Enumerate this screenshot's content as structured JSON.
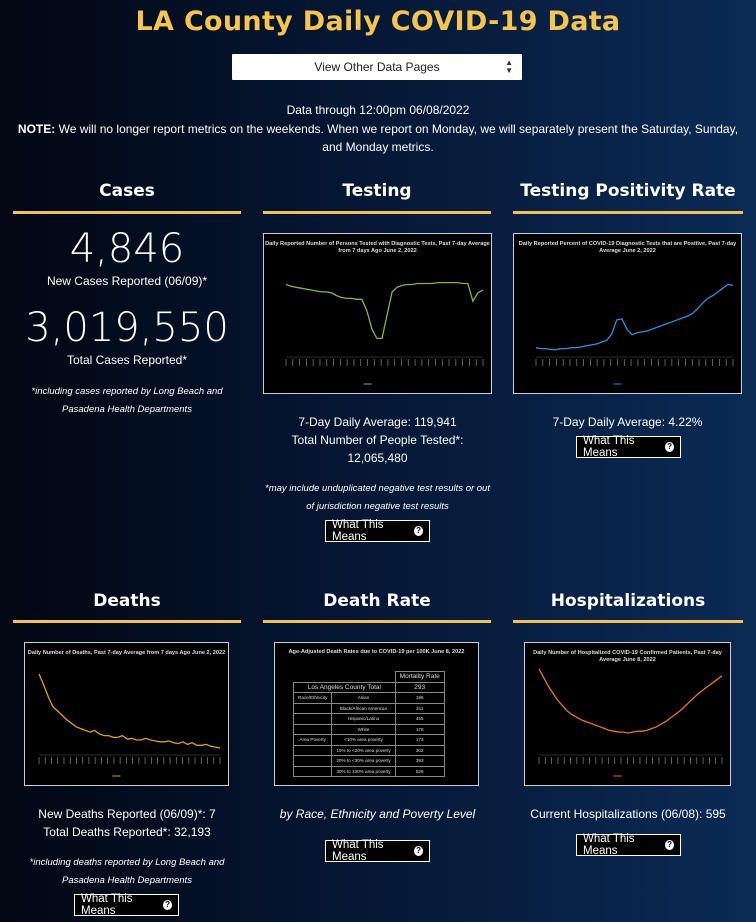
{
  "page": {
    "title": "LA County Daily COVID-19 Data"
  },
  "nav": {
    "dropdown_label": "View Other Data Pages"
  },
  "info": {
    "data_through": "Data through 12:00pm 06/08/2022",
    "note_label": "NOTE:",
    "note_text": " We will no longer report metrics on the weekends. When we report on Monday, we will separately present the Saturday, Sunday, and Monday metrics."
  },
  "cases": {
    "heading": "Cases",
    "new_count": "4,846",
    "new_label": "New Cases Reported (06/09)*",
    "total_count": "3,019,550",
    "total_label": "Total Cases Reported*",
    "footnote": "*including cases reported by Long Beach and Pasadena Health Departments"
  },
  "testing": {
    "heading": "Testing",
    "chart_title": "Daily Reported Number of Persons Tested with Diagnostic Tests, Past 7-day Average from 7 days Ago June 2, 2022",
    "avg_line": "7-Day Daily Average: 119,941",
    "total_line1": "Total Number of People Tested*:",
    "total_line2": "12,065,480",
    "footnote": "*may include unduplicated negative test results or out of jurisdiction negative test results",
    "button": "What This Means"
  },
  "positivity": {
    "heading": "Testing Positivity Rate",
    "chart_title": "Daily Reported Percent of COVID-19 Diagnostic Tests that are Positive, Past 7-day Average June 2, 2022",
    "avg_line": "7-Day Daily Average: 4.22%",
    "button": "What This Means"
  },
  "deaths": {
    "heading": "Deaths",
    "chart_title": "Daily Number of Deaths, Past 7-day Average from 7 days Ago June 2, 2022",
    "new_line": "New Deaths Reported (06/09)*: 7",
    "total_line": "Total Deaths Reported*: 32,193",
    "footnote": "*including deaths reported by Long Beach and Pasadena Health Departments",
    "button": "What This Means"
  },
  "death_rate": {
    "heading": "Death Rate",
    "chart_title": "Age-Adjusted Death Rates due to COVID-19 per 100K June 8, 2022",
    "table_header": "Mortality Rate",
    "county_label": "Los Angeles County Total",
    "county_value": "293",
    "group_race": "Race/Ethnicity",
    "group_poverty": "Area Poverty",
    "rows": [
      {
        "label": "Asian",
        "value": "196"
      },
      {
        "label": "Black/African American",
        "value": "311"
      },
      {
        "label": "Hispanic/Latino",
        "value": "455"
      },
      {
        "label": "White",
        "value": "178"
      },
      {
        "label": "<10% area poverty",
        "value": "173"
      },
      {
        "label": "10% to <20% area poverty",
        "value": "302"
      },
      {
        "label": "20% to <30% area poverty",
        "value": "393"
      },
      {
        "label": "30% to 100% area poverty",
        "value": "525"
      }
    ],
    "caption": "by Race, Ethnicity and Poverty Level",
    "button": "What This Means"
  },
  "hospitalizations": {
    "heading": "Hospitalizations",
    "chart_title": "Daily Number of Hospitalized COVID-19 Confirmed Patients, Past 7-day Average June 8, 2022",
    "current_line": "Current Hospitalizations (06/08): 595",
    "button": "What This Means"
  },
  "colors": {
    "accent": "#f5c451",
    "rule": "#f0c15a",
    "testing_line": "#8db23a",
    "positivity_line": "#2e8fd8",
    "deaths_line": "#d9a21b",
    "hosp_line": "#e07b1c"
  },
  "chart_data": [
    {
      "type": "line",
      "title": "Daily Reported Number of Persons Tested with Diagnostic Tests, Past 7-day Average from 7 days Ago June 2, 2022",
      "series": [
        {
          "values": [
            0.78,
            0.76,
            0.75,
            0.74,
            0.73,
            0.72,
            0.71,
            0.7,
            0.7,
            0.69,
            0.66,
            0.64,
            0.63,
            0.63,
            0.62,
            0.62,
            0.5,
            0.3,
            0.2,
            0.2,
            0.45,
            0.7,
            0.75,
            0.77,
            0.78,
            0.78,
            0.79,
            0.79,
            0.79,
            0.79,
            0.8,
            0.8,
            0.8,
            0.8,
            0.8,
            0.79,
            0.79,
            0.6,
            0.69,
            0.72
          ]
        }
      ]
    },
    {
      "type": "line",
      "title": "Daily Reported Percent of COVID-19 Diagnostic Tests that are Positive, Past 7-day Average June 2, 2022",
      "series": [
        {
          "values": [
            0.1,
            0.09,
            0.09,
            0.08,
            0.08,
            0.09,
            0.09,
            0.1,
            0.1,
            0.11,
            0.12,
            0.13,
            0.14,
            0.16,
            0.18,
            0.25,
            0.4,
            0.41,
            0.3,
            0.24,
            0.26,
            0.27,
            0.28,
            0.3,
            0.32,
            0.34,
            0.36,
            0.38,
            0.4,
            0.42,
            0.44,
            0.47,
            0.52,
            0.58,
            0.63,
            0.66,
            0.7,
            0.74,
            0.78,
            0.77
          ]
        }
      ]
    },
    {
      "type": "line",
      "title": "Daily Number of Deaths, Past 7-day Average from 7 days Ago June 2, 2022",
      "series": [
        {
          "values": [
            0.92,
            0.8,
            0.66,
            0.55,
            0.5,
            0.45,
            0.4,
            0.36,
            0.32,
            0.3,
            0.28,
            0.26,
            0.28,
            0.24,
            0.22,
            0.22,
            0.2,
            0.2,
            0.22,
            0.18,
            0.19,
            0.17,
            0.17,
            0.19,
            0.17,
            0.16,
            0.15,
            0.15,
            0.16,
            0.14,
            0.13,
            0.15,
            0.12,
            0.14,
            0.11,
            0.11,
            0.12,
            0.1,
            0.09,
            0.08
          ]
        }
      ]
    },
    {
      "type": "line",
      "title": "Daily Number of Hospitalized COVID-19 Confirmed Patients, Past 7-day Average June 8, 2022",
      "series": [
        {
          "values": [
            0.98,
            0.88,
            0.78,
            0.7,
            0.62,
            0.56,
            0.5,
            0.46,
            0.43,
            0.4,
            0.38,
            0.36,
            0.34,
            0.32,
            0.3,
            0.28,
            0.27,
            0.26,
            0.26,
            0.25,
            0.26,
            0.27,
            0.27,
            0.28,
            0.3,
            0.32,
            0.35,
            0.38,
            0.42,
            0.46,
            0.5,
            0.55,
            0.6,
            0.65,
            0.7,
            0.74,
            0.78,
            0.82,
            0.86,
            0.9
          ]
        }
      ]
    }
  ]
}
